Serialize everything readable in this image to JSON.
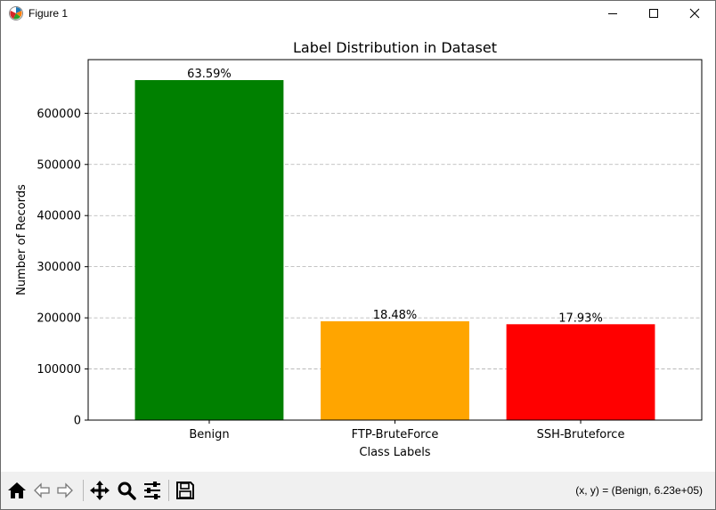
{
  "window": {
    "title": "Figure 1",
    "controls": {
      "minimize": "minimize",
      "maximize": "maximize",
      "close": "close"
    }
  },
  "toolbar": {
    "tools": [
      "home-icon",
      "back-arrow-icon",
      "forward-arrow-icon",
      "pan-icon",
      "zoom-icon",
      "configure-subplots-icon",
      "save-icon"
    ],
    "coords_text": "(x, y) = (Benign, 6.23e+05)"
  },
  "chart_data": {
    "type": "bar",
    "title": "Label Distribution in Dataset",
    "xlabel": "Class Labels",
    "ylabel": "Number of Records",
    "categories": [
      "Benign",
      "FTP-BruteForce",
      "SSH-Bruteforce"
    ],
    "values": [
      665000,
      193300,
      187500
    ],
    "bar_labels": [
      "63.59%",
      "18.48%",
      "17.93%"
    ],
    "colors": [
      "#008000",
      "#ffa500",
      "#ff0000"
    ],
    "ylim": [
      0,
      705000
    ],
    "yticks": [
      0,
      100000,
      200000,
      300000,
      400000,
      500000,
      600000
    ],
    "ytick_labels": [
      "0",
      "100000",
      "200000",
      "300000",
      "400000",
      "500000",
      "600000"
    ],
    "grid": {
      "axis": "y",
      "style": "dashed"
    }
  }
}
